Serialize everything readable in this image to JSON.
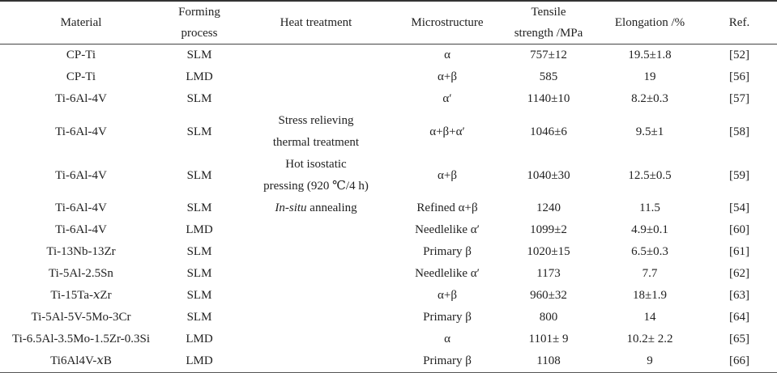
{
  "headers": {
    "material": "Material",
    "forming": "Forming process",
    "heat": "Heat treatment",
    "micro": "Microstructure",
    "tensile_1": "Tensile",
    "tensile_2": "strength /MPa",
    "elongation": "Elongation /%",
    "ref": "Ref."
  },
  "rows": [
    {
      "material": "CP-Ti",
      "forming": "SLM",
      "heat": [],
      "micro": "α",
      "tensile": "757±12",
      "elongation": "19.5±1.8",
      "ref": "[52]"
    },
    {
      "material": "CP-Ti",
      "forming": "LMD",
      "heat": [],
      "micro": "α+β",
      "tensile": "585",
      "elongation": "19",
      "ref": "[56]"
    },
    {
      "material": "Ti-6Al-4V",
      "forming": "SLM",
      "heat": [],
      "micro": "α′",
      "tensile": "1140±10",
      "elongation": "8.2±0.3",
      "ref": "[57]"
    },
    {
      "material": "Ti-6Al-4V",
      "forming": "SLM",
      "heat": [
        {
          "text": "Stress relieving"
        },
        {
          "text": "thermal treatment"
        }
      ],
      "micro": "α+β+α′",
      "tensile": "1046±6",
      "elongation": "9.5±1",
      "ref": "[58]"
    },
    {
      "material": "Ti-6Al-4V",
      "forming": "SLM",
      "heat": [
        {
          "text": "Hot isostatic"
        },
        {
          "text": "pressing (920 ℃/4 h)"
        }
      ],
      "micro": "α+β",
      "tensile": "1040±30",
      "elongation": "12.5±0.5",
      "ref": "[59]"
    },
    {
      "material": "Ti-6Al-4V",
      "forming": "SLM",
      "heat": [
        {
          "italic": "In-situ",
          "text": " annealing"
        }
      ],
      "micro": "Refined α+β",
      "tensile": "1240",
      "elongation": "11.5",
      "ref": "[54]"
    },
    {
      "material": "Ti-6Al-4V",
      "forming": "LMD",
      "heat": [],
      "micro": "Needlelike α′",
      "tensile": "1099±2",
      "elongation": "4.9±0.1",
      "ref": "[60]"
    },
    {
      "material": "Ti-13Nb-13Zr",
      "forming": "SLM",
      "heat": [],
      "micro": "Primary β",
      "tensile": "1020±15",
      "elongation": "6.5±0.3",
      "ref": "[61]"
    },
    {
      "material": "Ti-5Al-2.5Sn",
      "forming": "SLM",
      "heat": [],
      "micro": "Needlelike α′",
      "tensile": "1173",
      "elongation": "7.7",
      "ref": "[62]"
    },
    {
      "material": "Ti-15Ta-𝑥Zr",
      "forming": "SLM",
      "heat": [],
      "micro": "α+β",
      "tensile": "960±32",
      "elongation": "18±1.9",
      "ref": "[63]"
    },
    {
      "material": "Ti-5Al-5V-5Mo-3Cr",
      "forming": "SLM",
      "heat": [],
      "micro": "Primary β",
      "tensile": "800",
      "elongation": "14",
      "ref": "[64]"
    },
    {
      "material": "Ti-6.5Al-3.5Mo-1.5Zr-0.3Si",
      "forming": "LMD",
      "heat": [],
      "micro": "α",
      "tensile": "1101± 9",
      "elongation": "10.2± 2.2",
      "ref": "[65]"
    },
    {
      "material": "Ti6Al4V-𝑥B",
      "forming": "LMD",
      "heat": [],
      "micro": "Primary β",
      "tensile": "1108",
      "elongation": "9",
      "ref": "[66]"
    }
  ]
}
